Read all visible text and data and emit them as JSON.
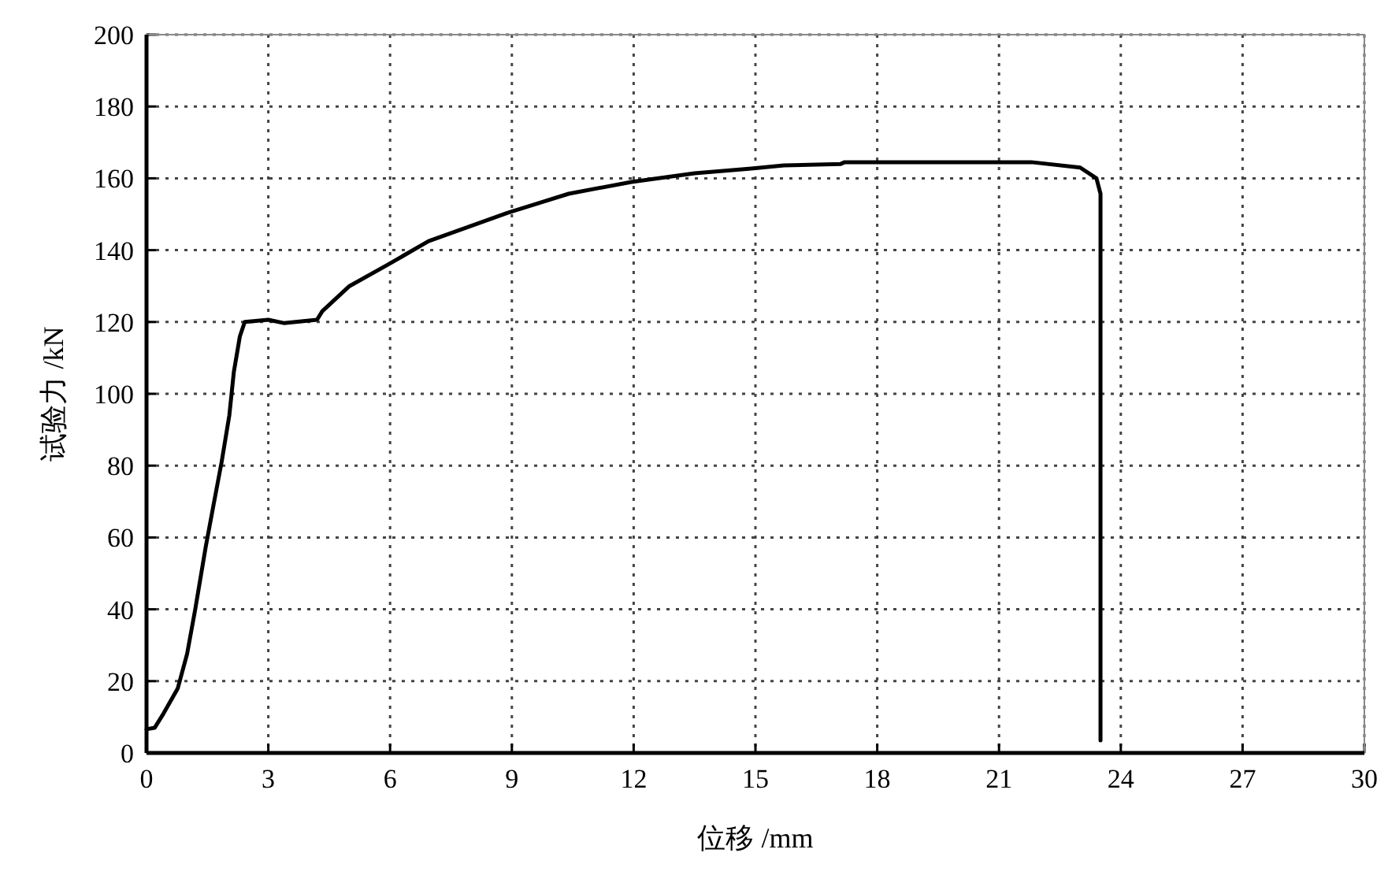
{
  "chart_data": {
    "type": "line",
    "xlabel": "位移 /mm",
    "ylabel": "试验力 /kN",
    "xlim": [
      0,
      30
    ],
    "xticks": [
      0,
      3,
      6,
      9,
      12,
      15,
      18,
      21,
      24,
      27,
      30
    ],
    "ylim": [
      0,
      200
    ],
    "yticks": [
      0,
      20,
      40,
      60,
      80,
      100,
      120,
      140,
      160,
      180,
      200
    ],
    "grid": true,
    "marker": "none",
    "line_style": "solid",
    "series": [
      {
        "color": "#000000",
        "x": [
          0,
          0.2,
          0.42,
          0.77,
          1.0,
          1.2,
          1.46,
          1.65,
          1.85,
          2.04,
          2.15,
          2.3,
          2.42,
          3.0,
          3.38,
          4.2,
          4.33,
          5.0,
          5.95,
          6.95,
          8.9,
          10.4,
          11.95,
          13.5,
          14.9,
          15.7,
          17.1,
          17.2,
          21.8,
          23.0,
          23.4,
          23.5,
          23.5
        ],
        "values": [
          6.6,
          7,
          11,
          18,
          27.6,
          40,
          57.5,
          69,
          81,
          94,
          106,
          116,
          120,
          120.6,
          119.7,
          120.6,
          123,
          130,
          136,
          142.5,
          150.4,
          155.7,
          159,
          161.4,
          162.7,
          163.6,
          164,
          164.5,
          164.5,
          163,
          160,
          155.7,
          3.5
        ]
      }
    ]
  }
}
